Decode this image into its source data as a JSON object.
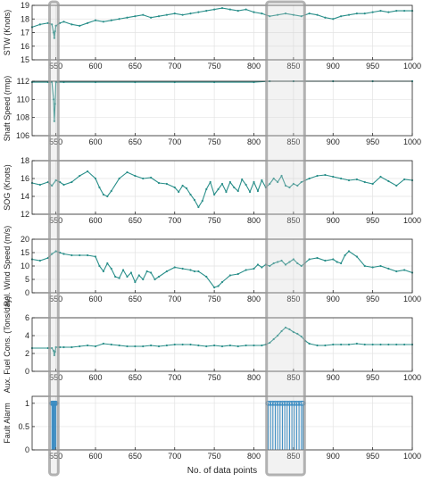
{
  "chart_data": {
    "type": "line",
    "xlabel": "No. of data points",
    "xlim": [
      520,
      1000
    ],
    "xticks": [
      "550",
      "600",
      "650",
      "700",
      "750",
      "800",
      "850",
      "900",
      "950",
      "1000"
    ],
    "highlight_ranges": [
      [
        542,
        553
      ],
      [
        816,
        864
      ]
    ],
    "line_color": "#2a8f8a",
    "marker_color": "#2a8f8a",
    "alarm_color": "#0072bd",
    "highlight_color": "#9a9a9a",
    "subplots": [
      {
        "ylabel": "STW (Knots)",
        "ylim": [
          15,
          19
        ],
        "yticks": [
          "15",
          "16",
          "17",
          "18",
          "19"
        ],
        "series": [
          {
            "x": [
              520,
              530,
              540,
              545,
              547,
              548,
              549,
              550,
              555,
              560,
              570,
              580,
              590,
              600,
              610,
              620,
              630,
              640,
              650,
              660,
              670,
              680,
              690,
              700,
              710,
              720,
              730,
              740,
              750,
              760,
              770,
              780,
              790,
              800,
              810,
              820,
              830,
              840,
              850,
              860,
              870,
              880,
              890,
              900,
              910,
              920,
              930,
              940,
              950,
              960,
              970,
              980,
              990,
              1000
            ],
            "y": [
              17.4,
              17.6,
              17.7,
              17.6,
              17.0,
              16.6,
              17.1,
              17.5,
              17.7,
              17.8,
              17.6,
              17.5,
              17.7,
              17.9,
              17.8,
              17.9,
              18.0,
              18.1,
              18.2,
              18.3,
              18.1,
              18.2,
              18.3,
              18.4,
              18.3,
              18.4,
              18.5,
              18.6,
              18.7,
              18.8,
              18.7,
              18.6,
              18.7,
              18.5,
              18.4,
              18.2,
              18.3,
              18.4,
              18.3,
              18.2,
              18.4,
              18.3,
              18.1,
              18.0,
              18.2,
              18.3,
              18.4,
              18.4,
              18.5,
              18.6,
              18.5,
              18.6,
              18.6,
              18.6
            ]
          }
        ]
      },
      {
        "ylabel": "Shaft Speed (rmp)",
        "ylim": [
          106,
          112
        ],
        "yticks": [
          "106",
          "108",
          "110",
          "112"
        ],
        "series": [
          {
            "x": [
              520,
              540,
              545,
              547,
              548,
              549,
              550,
              552,
              560,
              600,
              650,
              700,
              750,
              800,
              820,
              850,
              900,
              950,
              1000
            ],
            "y": [
              111.9,
              111.9,
              111.9,
              110.0,
              107.6,
              109.5,
              111.9,
              111.9,
              111.9,
              111.9,
              111.9,
              111.9,
              111.9,
              111.9,
              112.0,
              112.0,
              112.0,
              112.0,
              112.0
            ]
          }
        ]
      },
      {
        "ylabel": "SOG (Knots)",
        "ylim": [
          12,
          18
        ],
        "yticks": [
          "12",
          "14",
          "16",
          "18"
        ],
        "series": [
          {
            "x": [
              520,
              530,
              540,
              545,
              550,
              555,
              560,
              570,
              580,
              590,
              600,
              605,
              610,
              615,
              620,
              630,
              640,
              650,
              660,
              670,
              680,
              690,
              700,
              705,
              710,
              715,
              720,
              725,
              730,
              735,
              740,
              745,
              750,
              755,
              760,
              765,
              770,
              775,
              780,
              785,
              790,
              795,
              800,
              805,
              810,
              815,
              820,
              825,
              830,
              835,
              840,
              845,
              850,
              855,
              860,
              870,
              880,
              890,
              900,
              910,
              920,
              930,
              940,
              950,
              960,
              970,
              980,
              990,
              1000
            ],
            "y": [
              15.5,
              15.3,
              15.6,
              15.2,
              15.8,
              15.6,
              15.3,
              15.6,
              16.3,
              16.8,
              16.0,
              15.0,
              14.2,
              14.0,
              14.6,
              16.0,
              16.7,
              16.3,
              16.0,
              16.1,
              15.5,
              15.4,
              15.0,
              14.5,
              15.2,
              14.9,
              14.2,
              13.6,
              12.8,
              13.5,
              14.8,
              15.6,
              14.2,
              14.8,
              15.4,
              14.5,
              15.6,
              15.0,
              14.6,
              15.9,
              15.3,
              14.5,
              15.6,
              14.6,
              15.8,
              15.0,
              15.4,
              16.0,
              15.6,
              16.3,
              15.2,
              15.0,
              15.4,
              15.2,
              15.6,
              16.0,
              16.3,
              16.4,
              16.2,
              16.0,
              15.8,
              15.9,
              15.6,
              15.4,
              16.2,
              15.7,
              15.2,
              15.9,
              15.8
            ]
          }
        ]
      },
      {
        "ylabel": "Rel. Wind Speed (m/s)",
        "ylim": [
          0,
          20
        ],
        "yticks": [
          "0",
          "5",
          "10",
          "15",
          "20"
        ],
        "series": [
          {
            "x": [
              520,
              530,
              540,
              545,
              550,
              555,
              560,
              570,
              580,
              590,
              600,
              605,
              610,
              615,
              620,
              625,
              630,
              635,
              640,
              645,
              650,
              655,
              660,
              665,
              670,
              675,
              680,
              690,
              700,
              710,
              720,
              725,
              730,
              740,
              750,
              755,
              760,
              770,
              780,
              790,
              800,
              805,
              810,
              815,
              820,
              825,
              830,
              835,
              840,
              845,
              850,
              855,
              860,
              870,
              880,
              890,
              900,
              905,
              910,
              915,
              920,
              930,
              940,
              950,
              960,
              970,
              980,
              990,
              1000
            ],
            "y": [
              12.5,
              12.0,
              13.0,
              14.5,
              15.5,
              15.0,
              14.5,
              14.0,
              14.0,
              14.0,
              13.5,
              10.0,
              8.0,
              11.0,
              9.0,
              6.0,
              5.5,
              8.5,
              6.0,
              7.5,
              4.0,
              6.5,
              5.0,
              8.0,
              7.5,
              5.0,
              6.0,
              8.0,
              9.5,
              9.0,
              8.5,
              8.0,
              8.0,
              6.0,
              2.0,
              2.5,
              4.0,
              6.5,
              7.0,
              8.5,
              9.0,
              10.5,
              9.5,
              10.5,
              10.0,
              11.0,
              11.5,
              12.0,
              10.5,
              11.5,
              12.5,
              11.0,
              10.0,
              12.5,
              13.0,
              12.0,
              12.5,
              11.5,
              11.0,
              14.0,
              15.5,
              13.5,
              10.0,
              9.5,
              10.0,
              9.0,
              8.0,
              8.5,
              7.5
            ]
          }
        ]
      },
      {
        "ylabel": "Aux. Fuel Cons. (Tons/day)",
        "ylim": [
          0,
          6
        ],
        "yticks": [
          "0",
          "2",
          "4",
          "6"
        ],
        "series": [
          {
            "x": [
              520,
              540,
              545,
              547,
              548,
              549,
              550,
              555,
              560,
              570,
              580,
              590,
              600,
              610,
              620,
              630,
              640,
              650,
              660,
              670,
              680,
              690,
              700,
              710,
              720,
              730,
              740,
              750,
              760,
              770,
              780,
              790,
              800,
              810,
              815,
              820,
              825,
              830,
              835,
              840,
              845,
              850,
              855,
              860,
              865,
              870,
              880,
              890,
              900,
              910,
              920,
              930,
              940,
              950,
              960,
              970,
              980,
              990,
              1000
            ],
            "y": [
              2.6,
              2.6,
              2.6,
              2.3,
              1.8,
              2.2,
              2.7,
              2.7,
              2.7,
              2.7,
              2.8,
              2.9,
              2.8,
              3.1,
              3.0,
              2.9,
              2.8,
              2.8,
              2.8,
              2.9,
              2.8,
              2.9,
              3.0,
              3.0,
              3.0,
              2.9,
              2.8,
              2.9,
              2.8,
              2.9,
              2.8,
              2.9,
              2.9,
              2.9,
              3.0,
              3.2,
              3.6,
              4.0,
              4.5,
              4.9,
              4.7,
              4.4,
              4.2,
              3.9,
              3.4,
              3.1,
              2.9,
              2.9,
              3.0,
              3.0,
              3.0,
              3.1,
              3.0,
              3.0,
              3.0,
              3.0,
              3.0,
              3.0,
              3.0
            ]
          }
        ]
      },
      {
        "ylabel": "Fault Alarm",
        "ylim": [
          0,
          1.15
        ],
        "yticks": [
          "0",
          "0.5",
          "1"
        ],
        "type": "stem",
        "alarm_x": [
          545,
          546,
          547,
          548,
          549,
          550,
          818,
          821,
          824,
          827,
          830,
          833,
          836,
          839,
          842,
          845,
          848,
          851,
          854,
          857,
          860,
          862
        ]
      }
    ]
  }
}
